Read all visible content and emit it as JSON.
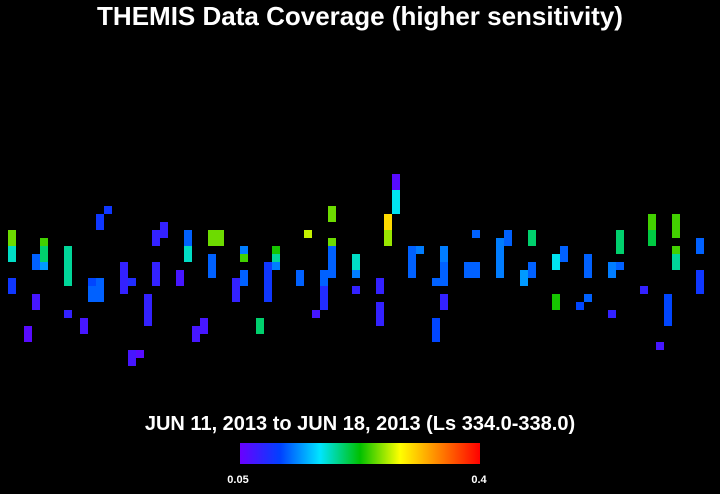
{
  "chart_data": {
    "type": "coverage-map",
    "title": "THEMIS Data Coverage (higher sensitivity)",
    "subtitle": "JUN 11, 2013 to JUN 18, 2013 (Ls 334.0-338.0)",
    "xlim": [
      0,
      88
    ],
    "ylim": [
      0,
      24
    ],
    "colormap": [
      "#6a00ff",
      "#0040ff",
      "#00e5ff",
      "#00c000",
      "#ffff00",
      "#ff8000",
      "#ff0000"
    ],
    "colorbar": {
      "min": 0.05,
      "max": 0.4
    },
    "points": [
      {
        "x": 0,
        "y": 7,
        "value": 0.25
      },
      {
        "x": 0,
        "y": 8,
        "value": 0.25
      },
      {
        "x": 0,
        "y": 9,
        "value": 0.18
      },
      {
        "x": 0,
        "y": 10,
        "value": 0.18
      },
      {
        "x": 0,
        "y": 13,
        "value": 0.1
      },
      {
        "x": 0,
        "y": 14,
        "value": 0.1
      },
      {
        "x": 2,
        "y": 19,
        "value": 0.06
      },
      {
        "x": 2,
        "y": 20,
        "value": 0.06
      },
      {
        "x": 3,
        "y": 10,
        "value": 0.12
      },
      {
        "x": 3,
        "y": 11,
        "value": 0.12
      },
      {
        "x": 3,
        "y": 15,
        "value": 0.07
      },
      {
        "x": 3,
        "y": 16,
        "value": 0.07
      },
      {
        "x": 4,
        "y": 8,
        "value": 0.24
      },
      {
        "x": 4,
        "y": 9,
        "value": 0.2
      },
      {
        "x": 4,
        "y": 10,
        "value": 0.2
      },
      {
        "x": 4,
        "y": 11,
        "value": 0.14
      },
      {
        "x": 7,
        "y": 9,
        "value": 0.19
      },
      {
        "x": 7,
        "y": 10,
        "value": 0.19
      },
      {
        "x": 7,
        "y": 11,
        "value": 0.19
      },
      {
        "x": 7,
        "y": 12,
        "value": 0.19
      },
      {
        "x": 7,
        "y": 13,
        "value": 0.19
      },
      {
        "x": 7,
        "y": 17,
        "value": 0.08
      },
      {
        "x": 9,
        "y": 18,
        "value": 0.07
      },
      {
        "x": 9,
        "y": 19,
        "value": 0.07
      },
      {
        "x": 10,
        "y": 13,
        "value": 0.11
      },
      {
        "x": 10,
        "y": 14,
        "value": 0.12
      },
      {
        "x": 10,
        "y": 15,
        "value": 0.12
      },
      {
        "x": 11,
        "y": 13,
        "value": 0.12
      },
      {
        "x": 11,
        "y": 14,
        "value": 0.12
      },
      {
        "x": 11,
        "y": 15,
        "value": 0.12
      },
      {
        "x": 11,
        "y": 5,
        "value": 0.1
      },
      {
        "x": 11,
        "y": 6,
        "value": 0.1
      },
      {
        "x": 12,
        "y": 4,
        "value": 0.1
      },
      {
        "x": 14,
        "y": 11,
        "value": 0.08
      },
      {
        "x": 14,
        "y": 12,
        "value": 0.08
      },
      {
        "x": 14,
        "y": 13,
        "value": 0.08
      },
      {
        "x": 14,
        "y": 14,
        "value": 0.08
      },
      {
        "x": 15,
        "y": 13,
        "value": 0.09
      },
      {
        "x": 15,
        "y": 22,
        "value": 0.07
      },
      {
        "x": 15,
        "y": 23,
        "value": 0.07
      },
      {
        "x": 16,
        "y": 22,
        "value": 0.06
      },
      {
        "x": 17,
        "y": 15,
        "value": 0.08
      },
      {
        "x": 17,
        "y": 16,
        "value": 0.08
      },
      {
        "x": 17,
        "y": 17,
        "value": 0.08
      },
      {
        "x": 17,
        "y": 18,
        "value": 0.08
      },
      {
        "x": 18,
        "y": 7,
        "value": 0.08
      },
      {
        "x": 18,
        "y": 8,
        "value": 0.08
      },
      {
        "x": 18,
        "y": 11,
        "value": 0.08
      },
      {
        "x": 18,
        "y": 12,
        "value": 0.08
      },
      {
        "x": 18,
        "y": 13,
        "value": 0.08
      },
      {
        "x": 19,
        "y": 6,
        "value": 0.08
      },
      {
        "x": 19,
        "y": 7,
        "value": 0.08
      },
      {
        "x": 21,
        "y": 12,
        "value": 0.07
      },
      {
        "x": 21,
        "y": 13,
        "value": 0.07
      },
      {
        "x": 22,
        "y": 7,
        "value": 0.12
      },
      {
        "x": 22,
        "y": 8,
        "value": 0.12
      },
      {
        "x": 22,
        "y": 9,
        "value": 0.18
      },
      {
        "x": 22,
        "y": 10,
        "value": 0.18
      },
      {
        "x": 23,
        "y": 19,
        "value": 0.07
      },
      {
        "x": 23,
        "y": 20,
        "value": 0.07
      },
      {
        "x": 24,
        "y": 18,
        "value": 0.07
      },
      {
        "x": 24,
        "y": 19,
        "value": 0.07
      },
      {
        "x": 25,
        "y": 7,
        "value": 0.25
      },
      {
        "x": 25,
        "y": 8,
        "value": 0.25
      },
      {
        "x": 25,
        "y": 10,
        "value": 0.12
      },
      {
        "x": 25,
        "y": 11,
        "value": 0.12
      },
      {
        "x": 25,
        "y": 12,
        "value": 0.12
      },
      {
        "x": 26,
        "y": 7,
        "value": 0.25
      },
      {
        "x": 26,
        "y": 8,
        "value": 0.25
      },
      {
        "x": 28,
        "y": 13,
        "value": 0.08
      },
      {
        "x": 28,
        "y": 14,
        "value": 0.08
      },
      {
        "x": 28,
        "y": 15,
        "value": 0.08
      },
      {
        "x": 29,
        "y": 9,
        "value": 0.13
      },
      {
        "x": 29,
        "y": 10,
        "value": 0.24
      },
      {
        "x": 29,
        "y": 12,
        "value": 0.12
      },
      {
        "x": 29,
        "y": 13,
        "value": 0.12
      },
      {
        "x": 31,
        "y": 18,
        "value": 0.2
      },
      {
        "x": 31,
        "y": 19,
        "value": 0.2
      },
      {
        "x": 32,
        "y": 11,
        "value": 0.1
      },
      {
        "x": 32,
        "y": 12,
        "value": 0.1
      },
      {
        "x": 32,
        "y": 13,
        "value": 0.1
      },
      {
        "x": 32,
        "y": 14,
        "value": 0.1
      },
      {
        "x": 32,
        "y": 15,
        "value": 0.1
      },
      {
        "x": 33,
        "y": 9,
        "value": 0.23
      },
      {
        "x": 33,
        "y": 10,
        "value": 0.19
      },
      {
        "x": 33,
        "y": 11,
        "value": 0.13
      },
      {
        "x": 36,
        "y": 12,
        "value": 0.12
      },
      {
        "x": 36,
        "y": 13,
        "value": 0.12
      },
      {
        "x": 37,
        "y": 7,
        "value": 0.27
      },
      {
        "x": 38,
        "y": 17,
        "value": 0.07
      },
      {
        "x": 39,
        "y": 12,
        "value": 0.12
      },
      {
        "x": 39,
        "y": 13,
        "value": 0.12
      },
      {
        "x": 39,
        "y": 14,
        "value": 0.09
      },
      {
        "x": 39,
        "y": 15,
        "value": 0.09
      },
      {
        "x": 39,
        "y": 16,
        "value": 0.09
      },
      {
        "x": 40,
        "y": 4,
        "value": 0.25
      },
      {
        "x": 40,
        "y": 5,
        "value": 0.25
      },
      {
        "x": 40,
        "y": 8,
        "value": 0.25
      },
      {
        "x": 40,
        "y": 9,
        "value": 0.12
      },
      {
        "x": 40,
        "y": 10,
        "value": 0.12
      },
      {
        "x": 40,
        "y": 11,
        "value": 0.12
      },
      {
        "x": 40,
        "y": 12,
        "value": 0.12
      },
      {
        "x": 43,
        "y": 10,
        "value": 0.18
      },
      {
        "x": 43,
        "y": 11,
        "value": 0.18
      },
      {
        "x": 43,
        "y": 12,
        "value": 0.13
      },
      {
        "x": 43,
        "y": 14,
        "value": 0.08
      },
      {
        "x": 46,
        "y": 13,
        "value": 0.08
      },
      {
        "x": 46,
        "y": 14,
        "value": 0.08
      },
      {
        "x": 46,
        "y": 16,
        "value": 0.08
      },
      {
        "x": 46,
        "y": 17,
        "value": 0.08
      },
      {
        "x": 46,
        "y": 18,
        "value": 0.08
      },
      {
        "x": 47,
        "y": 5,
        "value": 0.3
      },
      {
        "x": 47,
        "y": 6,
        "value": 0.3
      },
      {
        "x": 47,
        "y": 7,
        "value": 0.26
      },
      {
        "x": 47,
        "y": 8,
        "value": 0.26
      },
      {
        "x": 48,
        "y": 0,
        "value": 0.06
      },
      {
        "x": 48,
        "y": 1,
        "value": 0.06
      },
      {
        "x": 48,
        "y": 2,
        "value": 0.17
      },
      {
        "x": 48,
        "y": 3,
        "value": 0.17
      },
      {
        "x": 48,
        "y": 4,
        "value": 0.17
      },
      {
        "x": 50,
        "y": 9,
        "value": 0.12
      },
      {
        "x": 50,
        "y": 10,
        "value": 0.12
      },
      {
        "x": 50,
        "y": 11,
        "value": 0.12
      },
      {
        "x": 50,
        "y": 12,
        "value": 0.12
      },
      {
        "x": 51,
        "y": 9,
        "value": 0.13
      },
      {
        "x": 53,
        "y": 13,
        "value": 0.12
      },
      {
        "x": 53,
        "y": 18,
        "value": 0.11
      },
      {
        "x": 53,
        "y": 19,
        "value": 0.11
      },
      {
        "x": 53,
        "y": 20,
        "value": 0.11
      },
      {
        "x": 54,
        "y": 9,
        "value": 0.13
      },
      {
        "x": 54,
        "y": 10,
        "value": 0.13
      },
      {
        "x": 54,
        "y": 11,
        "value": 0.12
      },
      {
        "x": 54,
        "y": 12,
        "value": 0.12
      },
      {
        "x": 54,
        "y": 13,
        "value": 0.12
      },
      {
        "x": 54,
        "y": 15,
        "value": 0.08
      },
      {
        "x": 54,
        "y": 16,
        "value": 0.08
      },
      {
        "x": 57,
        "y": 11,
        "value": 0.12
      },
      {
        "x": 57,
        "y": 12,
        "value": 0.12
      },
      {
        "x": 58,
        "y": 7,
        "value": 0.12
      },
      {
        "x": 58,
        "y": 11,
        "value": 0.12
      },
      {
        "x": 58,
        "y": 12,
        "value": 0.12
      },
      {
        "x": 61,
        "y": 8,
        "value": 0.13
      },
      {
        "x": 61,
        "y": 9,
        "value": 0.13
      },
      {
        "x": 61,
        "y": 10,
        "value": 0.13
      },
      {
        "x": 61,
        "y": 11,
        "value": 0.13
      },
      {
        "x": 61,
        "y": 12,
        "value": 0.13
      },
      {
        "x": 62,
        "y": 7,
        "value": 0.12
      },
      {
        "x": 62,
        "y": 8,
        "value": 0.12
      },
      {
        "x": 64,
        "y": 12,
        "value": 0.14
      },
      {
        "x": 64,
        "y": 13,
        "value": 0.14
      },
      {
        "x": 65,
        "y": 7,
        "value": 0.2
      },
      {
        "x": 65,
        "y": 8,
        "value": 0.2
      },
      {
        "x": 65,
        "y": 11,
        "value": 0.12
      },
      {
        "x": 65,
        "y": 12,
        "value": 0.12
      },
      {
        "x": 68,
        "y": 10,
        "value": 0.17
      },
      {
        "x": 68,
        "y": 11,
        "value": 0.17
      },
      {
        "x": 68,
        "y": 15,
        "value": 0.23
      },
      {
        "x": 68,
        "y": 16,
        "value": 0.23
      },
      {
        "x": 69,
        "y": 9,
        "value": 0.12
      },
      {
        "x": 69,
        "y": 10,
        "value": 0.12
      },
      {
        "x": 71,
        "y": 16,
        "value": 0.11
      },
      {
        "x": 72,
        "y": 10,
        "value": 0.12
      },
      {
        "x": 72,
        "y": 11,
        "value": 0.12
      },
      {
        "x": 72,
        "y": 12,
        "value": 0.12
      },
      {
        "x": 72,
        "y": 15,
        "value": 0.12
      },
      {
        "x": 75,
        "y": 11,
        "value": 0.13
      },
      {
        "x": 75,
        "y": 12,
        "value": 0.13
      },
      {
        "x": 75,
        "y": 17,
        "value": 0.08
      },
      {
        "x": 76,
        "y": 7,
        "value": 0.2
      },
      {
        "x": 76,
        "y": 8,
        "value": 0.2
      },
      {
        "x": 76,
        "y": 9,
        "value": 0.2
      },
      {
        "x": 76,
        "y": 11,
        "value": 0.12
      },
      {
        "x": 79,
        "y": 14,
        "value": 0.08
      },
      {
        "x": 80,
        "y": 5,
        "value": 0.24
      },
      {
        "x": 80,
        "y": 6,
        "value": 0.24
      },
      {
        "x": 80,
        "y": 7,
        "value": 0.21
      },
      {
        "x": 80,
        "y": 8,
        "value": 0.21
      },
      {
        "x": 81,
        "y": 21,
        "value": 0.07
      },
      {
        "x": 82,
        "y": 15,
        "value": 0.11
      },
      {
        "x": 82,
        "y": 16,
        "value": 0.11
      },
      {
        "x": 82,
        "y": 17,
        "value": 0.11
      },
      {
        "x": 82,
        "y": 18,
        "value": 0.11
      },
      {
        "x": 83,
        "y": 5,
        "value": 0.24
      },
      {
        "x": 83,
        "y": 6,
        "value": 0.24
      },
      {
        "x": 83,
        "y": 7,
        "value": 0.24
      },
      {
        "x": 83,
        "y": 9,
        "value": 0.24
      },
      {
        "x": 83,
        "y": 10,
        "value": 0.19
      },
      {
        "x": 83,
        "y": 11,
        "value": 0.19
      },
      {
        "x": 86,
        "y": 8,
        "value": 0.12
      },
      {
        "x": 86,
        "y": 9,
        "value": 0.12
      },
      {
        "x": 86,
        "y": 12,
        "value": 0.1
      },
      {
        "x": 86,
        "y": 13,
        "value": 0.1
      },
      {
        "x": 86,
        "y": 14,
        "value": 0.1
      }
    ]
  }
}
